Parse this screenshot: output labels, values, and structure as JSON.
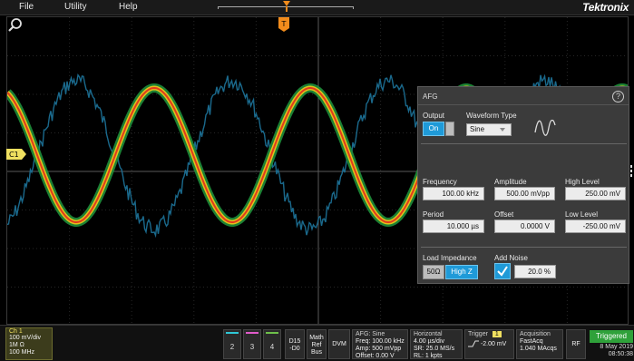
{
  "menu": {
    "file": "File",
    "utility": "Utility",
    "help": "Help",
    "logo": "Tektronix"
  },
  "waveform": {
    "ch1_label": "C1",
    "trigger_label": "T"
  },
  "afg": {
    "title": "AFG",
    "help": "?",
    "output_label": "Output",
    "output_on": "On",
    "waveform_type_label": "Waveform Type",
    "waveform_type_value": "Sine",
    "frequency_label": "Frequency",
    "frequency_value": "100.00 kHz",
    "amplitude_label": "Amplitude",
    "amplitude_value": "500.00 mVpp",
    "high_level_label": "High Level",
    "high_level_value": "250.00 mV",
    "period_label": "Period",
    "period_value": "10.000 µs",
    "offset_label": "Offset",
    "offset_value": "0.0000 V",
    "low_level_label": "Low Level",
    "low_level_value": "-250.00 mV",
    "load_impedance_label": "Load Impedance",
    "load_50": "50Ω",
    "load_highz": "High Z",
    "add_noise_label": "Add Noise",
    "noise_value": "20.0 %"
  },
  "status": {
    "ch1": {
      "title": "Ch 1",
      "line1": "100 mV/div",
      "line2": "1M Ω",
      "line3": "100 MHz"
    },
    "ch2": "2",
    "ch3": "3",
    "ch4": "4",
    "digital": {
      "l1": "D15",
      "l2": "-D0"
    },
    "math": {
      "l1": "Math",
      "l2": "Ref",
      "l3": "Bus"
    },
    "dvm": "DVM",
    "afg": {
      "title": "AFG: Sine",
      "l1": "Freq: 100.00 kHz",
      "l2": "Amp: 500 mVpp",
      "l3": "Offset: 0.00 V"
    },
    "horizontal": {
      "title": "Horizontal",
      "l1": "4.00 µs/div",
      "l2": "SR: 25.0 MS/s",
      "l3": "RL: 1 kpts"
    },
    "trigger": {
      "title": "Trigger",
      "source": "1",
      "level": "-2.00 mV"
    },
    "acquisition": {
      "title": "Acquisition",
      "l1": "FastAcq",
      "l2": "1.040 MAcqs"
    },
    "rf": "RF",
    "triggered": "Triggered",
    "date": "8 May 2019",
    "time": "08:50:38"
  },
  "colors": {
    "ch1": "#f0e060",
    "ch2": "#2fc7d6",
    "ch3": "#e05bc9",
    "ch4": "#6ec04a",
    "accent": "#1f9ad8",
    "afg_trace": "#1b6f94"
  }
}
